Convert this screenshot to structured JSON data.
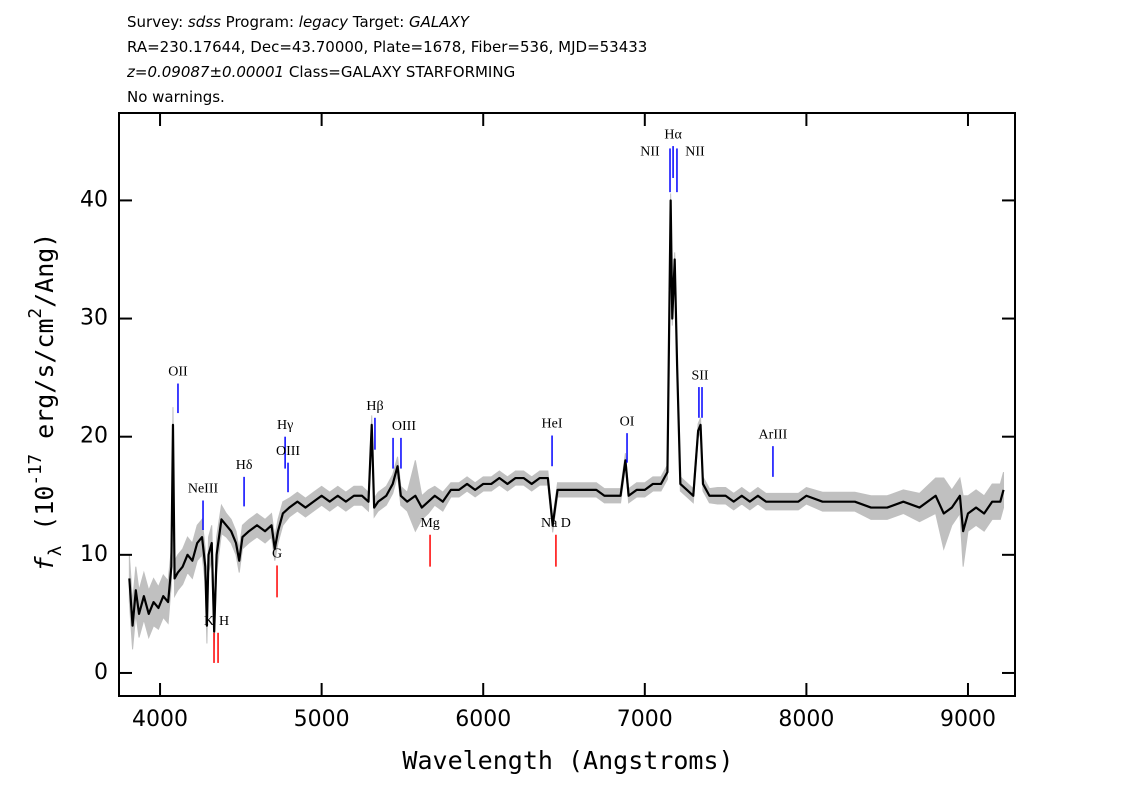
{
  "chart_data": {
    "type": "spectrum",
    "header": [
      [
        {
          "text": "Survey: "
        },
        {
          "text": "sdss",
          "italic": true
        },
        {
          "text": " Program: "
        },
        {
          "text": "legacy",
          "italic": true
        },
        {
          "text": " Target: "
        },
        {
          "text": "GALAXY",
          "italic": true
        }
      ],
      [
        {
          "text": "RA=230.17644, Dec=43.70000, Plate=1678, Fiber=536, MJD=53433"
        }
      ],
      [
        {
          "text": "z=0.09087±0.00001",
          "italic": true
        },
        {
          "text": " Class=GALAXY STARFORMING"
        }
      ],
      [
        {
          "text": "No warnings."
        }
      ]
    ],
    "x_label": [
      {
        "text": "Wavelength (Angstroms)"
      }
    ],
    "y_label": [
      {
        "text": "f",
        "italic": true
      },
      {
        "text": "λ",
        "sub": true
      },
      {
        "text": " (10"
      },
      {
        "text": "-17",
        "sup": true
      },
      {
        "text": " erg/s/cm"
      },
      {
        "text": "2",
        "sup": true
      },
      {
        "text": "/Ang)"
      }
    ],
    "xlim": [
      3746,
      9291
    ],
    "ylim": [
      -1.95,
      47.4
    ],
    "xticks": [
      4000,
      5000,
      6000,
      7000,
      8000,
      9000
    ],
    "yticks": [
      0,
      10,
      20,
      30,
      40
    ],
    "color": "#000000",
    "error_color": "#c0c0c0",
    "x": [
      3810,
      3830,
      3850,
      3870,
      3900,
      3930,
      3960,
      3990,
      4020,
      4050,
      4070,
      4080,
      4090,
      4110,
      4140,
      4170,
      4200,
      4230,
      4260,
      4280,
      4290,
      4300,
      4320,
      4335,
      4350,
      4380,
      4410,
      4440,
      4470,
      4490,
      4510,
      4550,
      4600,
      4650,
      4690,
      4710,
      4730,
      4760,
      4800,
      4850,
      4900,
      4950,
      5000,
      5050,
      5100,
      5150,
      5200,
      5250,
      5290,
      5310,
      5325,
      5350,
      5400,
      5440,
      5470,
      5490,
      5530,
      5580,
      5620,
      5660,
      5700,
      5750,
      5800,
      5850,
      5900,
      5950,
      6000,
      6050,
      6100,
      6150,
      6200,
      6250,
      6300,
      6350,
      6400,
      6430,
      6460,
      6500,
      6550,
      6600,
      6650,
      6700,
      6750,
      6800,
      6850,
      6880,
      6900,
      6950,
      7000,
      7050,
      7100,
      7140,
      7160,
      7170,
      7185,
      7200,
      7220,
      7260,
      7300,
      7330,
      7345,
      7360,
      7400,
      7450,
      7500,
      7550,
      7600,
      7650,
      7700,
      7750,
      7800,
      7850,
      7900,
      7950,
      8000,
      8100,
      8200,
      8300,
      8400,
      8500,
      8600,
      8700,
      8800,
      8850,
      8900,
      8950,
      8970,
      9000,
      9050,
      9100,
      9150,
      9200,
      9220
    ],
    "values": [
      8,
      4,
      7,
      5,
      6.5,
      5,
      6,
      5.5,
      6.5,
      6,
      9,
      21,
      8,
      8.5,
      9,
      10,
      9.5,
      11,
      11.5,
      9,
      4,
      10,
      11,
      3.5,
      10,
      13,
      12.5,
      12,
      11,
      9.5,
      11.5,
      12,
      12.5,
      12,
      12.5,
      10.5,
      12,
      13.5,
      14,
      14.5,
      14,
      14.5,
      15,
      14.5,
      15,
      14.5,
      15,
      15,
      14.5,
      21,
      14,
      14.5,
      15,
      16,
      17.5,
      15,
      14.5,
      15,
      14,
      14.5,
      15,
      14.5,
      15.5,
      15.5,
      16,
      15.5,
      16,
      16,
      16.5,
      16,
      16.5,
      16.5,
      16,
      16.5,
      16.5,
      12.5,
      15.5,
      15.5,
      15.5,
      15.5,
      15.5,
      15.5,
      15,
      15,
      15,
      18,
      15,
      15.5,
      15.5,
      16,
      16,
      17,
      40,
      30,
      35,
      26,
      16,
      15.5,
      15,
      20.5,
      21,
      16,
      15,
      15,
      15,
      14.5,
      15,
      14.5,
      15,
      14.5,
      14.5,
      14.5,
      14.5,
      14.5,
      15,
      14.5,
      14.5,
      14.5,
      14,
      14,
      14.5,
      14,
      15,
      13.5,
      14,
      15,
      12,
      13.5,
      14,
      13.5,
      14.5,
      14.5,
      15.5
    ],
    "errors": [
      2,
      2,
      2,
      2,
      2,
      2,
      2,
      1.8,
      1.8,
      1.8,
      1.5,
      1.5,
      1.5,
      1.5,
      1.5,
      1.5,
      1.5,
      1.5,
      1.5,
      1.5,
      1.5,
      1.5,
      1.5,
      1.5,
      1.5,
      1.2,
      1,
      1,
      1,
      1,
      1,
      1,
      1,
      1,
      1,
      1,
      1,
      1,
      0.8,
      0.8,
      0.8,
      0.8,
      0.8,
      0.8,
      0.8,
      0.8,
      0.8,
      0.8,
      0.8,
      0.8,
      0.8,
      0.8,
      0.8,
      0.8,
      0.8,
      0.8,
      0.8,
      3,
      1,
      1,
      0.8,
      0.8,
      0.6,
      0.6,
      0.6,
      0.6,
      0.6,
      0.6,
      0.6,
      0.6,
      0.6,
      0.6,
      0.6,
      0.6,
      0.6,
      0.6,
      0.6,
      0.6,
      0.6,
      0.6,
      0.6,
      0.6,
      0.6,
      0.6,
      0.6,
      0.6,
      0.6,
      0.6,
      0.6,
      0.6,
      0.6,
      0.6,
      0.6,
      0.6,
      0.6,
      0.6,
      0.6,
      0.6,
      0.6,
      0.6,
      0.6,
      0.6,
      0.6,
      0.7,
      0.7,
      0.7,
      0.7,
      0.7,
      0.7,
      0.7,
      0.7,
      0.7,
      0.7,
      0.7,
      0.7,
      0.8,
      0.8,
      0.8,
      1,
      1,
      1,
      1.2,
      1.5,
      3,
      1.5,
      1.5,
      3,
      1.5,
      1.5,
      1.5,
      1.5,
      1.5,
      1.5
    ],
    "lines": [
      {
        "label": "OII",
        "x": 4111,
        "y": [
          24.5,
          22.0
        ],
        "color": "#0000ff"
      },
      {
        "label": "NeIII",
        "x": 4266,
        "y": [
          14.6,
          12.1
        ],
        "color": "#0000ff"
      },
      {
        "label": "Hδ",
        "x": 4520,
        "y": [
          16.6,
          14.1
        ],
        "color": "#0000ff"
      },
      {
        "label": "Hγ",
        "x": 4774,
        "y": [
          20.0,
          17.3
        ],
        "color": "#0000ff"
      },
      {
        "label": "OIII",
        "x": 4792,
        "y": [
          17.8,
          15.3
        ],
        "color": "#0000ff"
      },
      {
        "label": "Hβ",
        "x": 5330,
        "y": [
          21.6,
          18.9
        ],
        "color": "#0000ff"
      },
      {
        "label": null,
        "x": 5442,
        "y": [
          19.9,
          17.3
        ],
        "color": "#0000ff"
      },
      {
        "label": "OIII",
        "x": 5491,
        "y": [
          19.9,
          17.3
        ],
        "color": "#0000ff"
      },
      {
        "label": "HeI",
        "x": 6426,
        "y": [
          20.1,
          17.5
        ],
        "color": "#0000ff"
      },
      {
        "label": "OI",
        "x": 6890,
        "y": [
          20.3,
          17.8
        ],
        "color": "#0000ff"
      },
      {
        "label": "NII",
        "x": 7156,
        "y": [
          44.4,
          40.7
        ],
        "color": "#0000ff"
      },
      {
        "label": "Hα",
        "x": 7175,
        "y": [
          44.6,
          41.9
        ],
        "color": "#0000ff"
      },
      {
        "label": "NII",
        "x": 7199,
        "y": [
          44.4,
          40.7
        ],
        "color": "#0000ff"
      },
      {
        "label": null,
        "x": 7335,
        "y": [
          24.2,
          21.6
        ],
        "color": "#0000ff"
      },
      {
        "label": "SII",
        "x": 7354,
        "y": [
          24.2,
          21.6
        ],
        "color": "#0000ff"
      },
      {
        "label": "ArIII",
        "x": 7793,
        "y": [
          19.2,
          16.6
        ],
        "color": "#0000ff"
      },
      {
        "label": "K",
        "x": 4334,
        "y": [
          3.4,
          0.85
        ],
        "color": "#ff0000"
      },
      {
        "label": "H",
        "x": 4359,
        "y": [
          3.4,
          0.85
        ],
        "color": "#ff0000"
      },
      {
        "label": "G",
        "x": 4724,
        "y": [
          9.1,
          6.4
        ],
        "color": "#ff0000"
      },
      {
        "label": "Mg",
        "x": 5671,
        "y": [
          11.7,
          9.0
        ],
        "color": "#ff0000"
      },
      {
        "label": "Na D",
        "x": 6450,
        "y": [
          11.7,
          9.0
        ],
        "color": "#ff0000"
      }
    ]
  }
}
